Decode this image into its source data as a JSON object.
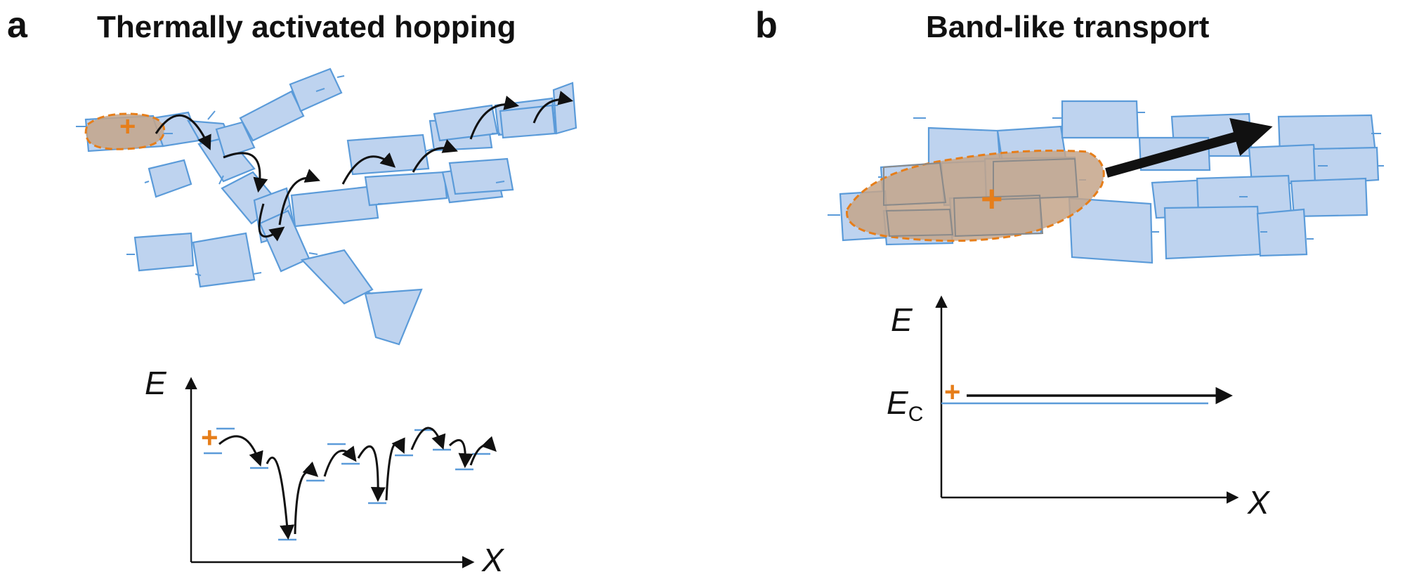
{
  "panel_a": {
    "letter": "a",
    "title": "Thermally activated hopping",
    "energy_axis": "E",
    "position_axis": "X",
    "charge": "+"
  },
  "panel_b": {
    "letter": "b",
    "title": "Band-like transport",
    "energy_axis": "E",
    "conduction_level_main": "E",
    "conduction_level_sub": "C",
    "position_axis": "X",
    "charge": "+"
  },
  "colors": {
    "flake_fill": "#bed3ef",
    "flake_stroke": "#5b9bd9",
    "charge": "#e67e1a",
    "delocalized_fill": "#c4a48a",
    "arrow": "#111111"
  }
}
